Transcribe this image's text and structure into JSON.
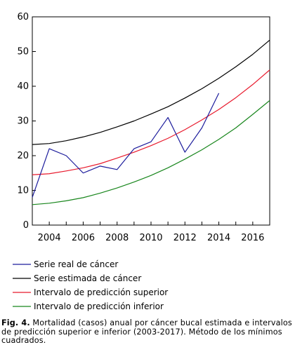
{
  "chart_data": {
    "type": "line",
    "x": [
      2003,
      2004,
      2005,
      2006,
      2007,
      2008,
      2009,
      2010,
      2011,
      2012,
      2013,
      2014,
      2015,
      2016,
      2017
    ],
    "xticks": [
      "2004",
      "2006",
      "2008",
      "2010",
      "2012",
      "2014",
      "2016"
    ],
    "yticks": [
      "0",
      "10",
      "20",
      "30",
      "40",
      "50",
      "60"
    ],
    "xlim": [
      2003,
      2017
    ],
    "ylim": [
      0,
      60
    ],
    "grid": false,
    "legend_position": "bottom",
    "series": [
      {
        "name": "Serie real de cáncer",
        "color": "#1c1c9c",
        "x": [
          2003,
          2004,
          2005,
          2006,
          2007,
          2008,
          2009,
          2010,
          2011,
          2012,
          2013,
          2014
        ],
        "values": [
          8,
          22,
          20,
          15,
          17,
          16,
          22,
          24,
          31,
          21,
          28,
          38
        ]
      },
      {
        "name": "Serie estimada de cáncer",
        "color": "#000000",
        "x": [
          2003,
          2004,
          2005,
          2006,
          2007,
          2008,
          2009,
          2010,
          2011,
          2012,
          2013,
          2014,
          2015,
          2016,
          2017
        ],
        "values": [
          23.2,
          23.5,
          24.3,
          25.4,
          26.7,
          28.3,
          30.0,
          32.0,
          34.1,
          36.6,
          39.3,
          42.3,
          45.6,
          49.2,
          53.3
        ]
      },
      {
        "name": "Intervalo de predicción superior",
        "color": "#e8192c",
        "x": [
          2003,
          2004,
          2005,
          2006,
          2007,
          2008,
          2009,
          2010,
          2011,
          2012,
          2013,
          2014,
          2015,
          2016,
          2017
        ],
        "values": [
          14.5,
          14.8,
          15.6,
          16.5,
          17.7,
          19.3,
          21.0,
          22.9,
          25.0,
          27.5,
          30.3,
          33.3,
          36.7,
          40.5,
          44.7
        ]
      },
      {
        "name": "Intervalo de predicción inferior",
        "color": "#18861c",
        "x": [
          2003,
          2004,
          2005,
          2006,
          2007,
          2008,
          2009,
          2010,
          2011,
          2012,
          2013,
          2014,
          2015,
          2016,
          2017
        ],
        "values": [
          5.9,
          6.3,
          7.0,
          7.9,
          9.2,
          10.7,
          12.4,
          14.3,
          16.5,
          19.0,
          21.7,
          24.7,
          28.0,
          31.9,
          35.9
        ]
      }
    ]
  },
  "caption": {
    "label": "Fig. 4.",
    "text": " Mortalidad (casos) anual por cáncer bucal estimada e intervalos de predicción superior e inferior (2003-2017). Método de los mínimos cuadrados."
  }
}
